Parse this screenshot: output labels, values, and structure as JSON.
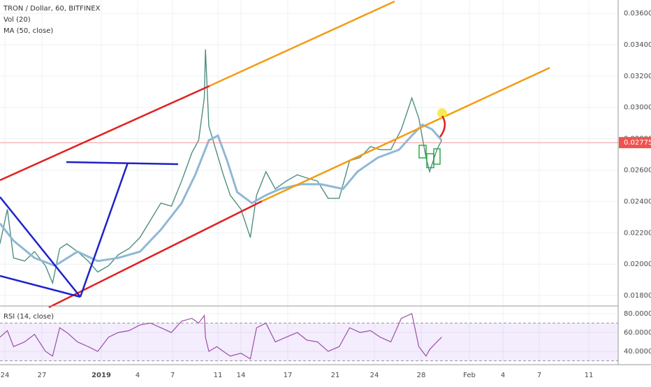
{
  "chart_data": {
    "type": "line",
    "title": "TRON / Dollar, 60, BITFINEX",
    "indicators": [
      "Vol (20)",
      "MA (50, close)"
    ],
    "x": [
      -0.4,
      0.2,
      0.7,
      1.6,
      2.4,
      3.3,
      3.9,
      4.5,
      5.1,
      6.0,
      6.9,
      7.7,
      8.6,
      9.4,
      10.3,
      11.2,
      12.1,
      13.0,
      13.9,
      14.8,
      15.7,
      16.3,
      16.8,
      16.9,
      17.2,
      17.9,
      18.7,
      19.6,
      21.0,
      21.6,
      22.0,
      22.6,
      23.2,
      23.9,
      24.8,
      25.6,
      26.5,
      27.4,
      28.3,
      29.1,
      29.9,
      30.7,
      31.5,
      32.4,
      33.3,
      34.2,
      34.8,
      35.4,
      35.7,
      36.3,
      36.7
    ],
    "series": [
      {
        "name": "TRON / Dollar",
        "color": "#4f8f80",
        "values": [
          0.0213,
          0.0235,
          0.0204,
          0.0202,
          0.0208,
          0.0199,
          0.0188,
          0.021,
          0.0213,
          0.0208,
          0.0202,
          0.0195,
          0.0199,
          0.0206,
          0.021,
          0.0217,
          0.0228,
          0.0239,
          0.0237,
          0.0253,
          0.0271,
          0.0279,
          0.0306,
          0.0337,
          0.0288,
          0.0271,
          0.0257,
          0.0244,
          0.0235,
          0.0217,
          0.0244,
          0.0259,
          0.0248,
          0.0253,
          0.0257,
          0.0255,
          0.0253,
          0.0242,
          0.0242,
          0.0266,
          0.0268,
          0.0275,
          0.0273,
          0.0273,
          0.0286,
          0.0306,
          0.0293,
          0.0268,
          0.0259,
          0.0273,
          0.0279
        ]
      },
      {
        "name": "MA (50, close)",
        "color": "#8fb8d6",
        "x": [
          -0.4,
          0.7,
          2.4,
          4.1,
          6.0,
          7.7,
          9.4,
          11.2,
          13.0,
          14.8,
          16.0,
          17.2,
          18.0,
          19.2,
          20.5,
          21.7,
          22.6,
          23.5,
          25.1,
          26.8,
          28.6,
          29.7,
          31.3,
          33.1,
          34.2,
          35.1,
          35.9,
          36.7
        ],
        "values": [
          0.0226,
          0.0215,
          0.0204,
          0.0199,
          0.0208,
          0.0202,
          0.0204,
          0.0208,
          0.0222,
          0.0239,
          0.0257,
          0.0279,
          0.0282,
          0.0266,
          0.0246,
          0.0239,
          0.0244,
          0.0248,
          0.0251,
          0.0251,
          0.0248,
          0.0259,
          0.0268,
          0.0273,
          0.0282,
          0.0289,
          0.0286,
          0.0279
        ]
      }
    ],
    "last_price": {
      "value": 0.027753,
      "label": "0.027753"
    },
    "xlim": [
      -0.4,
      51.4
    ],
    "xticks": [
      {
        "value": 0,
        "label": "24"
      },
      {
        "value": 3,
        "label": "27"
      },
      {
        "value": 8,
        "label": "2019"
      },
      {
        "value": 11,
        "label": "4"
      },
      {
        "value": 14,
        "label": "7"
      },
      {
        "value": 18,
        "label": "11"
      },
      {
        "value": 21,
        "label": "14"
      },
      {
        "value": 24,
        "label": "17"
      },
      {
        "value": 28,
        "label": "21"
      },
      {
        "value": 31,
        "label": "24"
      },
      {
        "value": 35,
        "label": "28"
      },
      {
        "value": 39,
        "label": "Feb"
      },
      {
        "value": 42,
        "label": "4"
      },
      {
        "value": 45,
        "label": "7"
      },
      {
        "value": 49,
        "label": "11"
      }
    ],
    "ylim": [
      0.01738,
      0.03685
    ],
    "yticks": [
      {
        "value": 0.018,
        "label": "0.018000"
      },
      {
        "value": 0.02,
        "label": "0.020000"
      },
      {
        "value": 0.022,
        "label": "0.022000"
      },
      {
        "value": 0.024,
        "label": "0.024000"
      },
      {
        "value": 0.026,
        "label": "0.026000"
      },
      {
        "value": 0.028,
        "label": "0.028000"
      },
      {
        "value": 0.03,
        "label": "0.030000"
      },
      {
        "value": 0.032,
        "label": "0.032000"
      },
      {
        "value": 0.034,
        "label": "0.034000"
      },
      {
        "value": 0.036,
        "label": "0.036000"
      }
    ],
    "rsi": {
      "name": "RSI (14, close)",
      "color": "#9c4fa6",
      "values": [
        55,
        62,
        45,
        50,
        58,
        40,
        35,
        65,
        60,
        50,
        45,
        40,
        55,
        60,
        62,
        68,
        70,
        65,
        60,
        72,
        75,
        70,
        78,
        55,
        40,
        45,
        40,
        35,
        38,
        32,
        65,
        70,
        50,
        55,
        60,
        52,
        50,
        40,
        45,
        65,
        60,
        62,
        55,
        50,
        75,
        80,
        45,
        35,
        42,
        50,
        55
      ],
      "ylim": [
        27.4,
        85.9
      ],
      "yticks": [
        {
          "value": 40,
          "label": "40.0000"
        },
        {
          "value": 60,
          "label": "60.0000"
        },
        {
          "value": 80,
          "label": "80.0000"
        }
      ],
      "bands": [
        30,
        70
      ]
    }
  }
}
